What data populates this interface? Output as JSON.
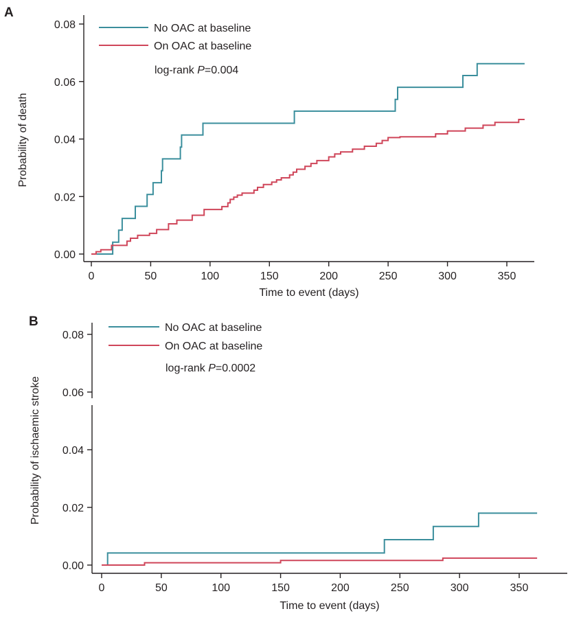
{
  "figure": {
    "panels": [
      "A",
      "B"
    ]
  },
  "chart_data": [
    {
      "type": "line",
      "panel_label": "A",
      "xlabel": "Time to event (days)",
      "ylabel": "Probability of death",
      "xlim": [
        0,
        370
      ],
      "ylim": [
        0,
        0.08
      ],
      "x_ticks": [
        0,
        50,
        100,
        150,
        200,
        250,
        300,
        350
      ],
      "y_ticks": [
        0.0,
        0.02,
        0.04,
        0.06,
        0.08
      ],
      "y_tick_labels": [
        "0.00",
        "0.02",
        "0.04",
        "0.06",
        "0.08"
      ],
      "grid": false,
      "legend_position": "top-left",
      "annotation": {
        "prefix": "log-rank ",
        "italic": "P",
        "suffix": "=0.004"
      },
      "series": [
        {
          "name": "No OAC at baseline",
          "color": "#3a8e9c",
          "step": true,
          "x": [
            0,
            5,
            18,
            23,
            26,
            37,
            47,
            52,
            59,
            60,
            75,
            76,
            94,
            171,
            256,
            258,
            263,
            313,
            325,
            365
          ],
          "y": [
            0,
            0,
            0.0041,
            0.0083,
            0.0124,
            0.0166,
            0.0207,
            0.0248,
            0.029,
            0.0331,
            0.0372,
            0.0414,
            0.0455,
            0.0497,
            0.0538,
            0.058,
            0.058,
            0.0621,
            0.0662,
            0.0662
          ]
        },
        {
          "name": "On OAC at baseline",
          "color": "#cf4559",
          "step": true,
          "x": [
            0,
            4,
            8,
            17,
            30,
            33,
            39,
            49,
            55,
            65,
            72,
            85,
            95,
            110,
            115,
            117,
            120,
            123,
            127,
            137,
            140,
            145,
            152,
            156,
            160,
            167,
            170,
            173,
            180,
            185,
            190,
            200,
            205,
            210,
            220,
            230,
            240,
            245,
            250,
            260,
            290,
            300,
            315,
            330,
            340,
            360,
            365
          ],
          "y": [
            0,
            0.0008,
            0.0015,
            0.003,
            0.0045,
            0.0055,
            0.0065,
            0.0072,
            0.0085,
            0.0105,
            0.0118,
            0.0135,
            0.0155,
            0.0165,
            0.0178,
            0.019,
            0.0198,
            0.0205,
            0.0212,
            0.0222,
            0.0232,
            0.0242,
            0.025,
            0.0258,
            0.0265,
            0.0275,
            0.0285,
            0.0295,
            0.0305,
            0.0315,
            0.0325,
            0.0338,
            0.0348,
            0.0355,
            0.0365,
            0.0375,
            0.0385,
            0.0395,
            0.0405,
            0.0408,
            0.0418,
            0.0428,
            0.0438,
            0.0448,
            0.0458,
            0.0468,
            0.0468
          ]
        }
      ]
    },
    {
      "type": "line",
      "panel_label": "B",
      "xlabel": "Time to event (days)",
      "ylabel": "Probability of ischaemic stroke",
      "xlim": [
        0,
        370
      ],
      "ylim": [
        0,
        0.08
      ],
      "x_ticks": [
        0,
        50,
        100,
        150,
        200,
        250,
        300,
        350
      ],
      "y_ticks": [
        0.0,
        0.02,
        0.04,
        0.06,
        0.08
      ],
      "y_tick_labels": [
        "0.00",
        "0.02",
        "0.04",
        "0.06",
        "0.08"
      ],
      "grid": false,
      "legend_position": "top-left",
      "annotation": {
        "prefix": "log-rank ",
        "italic": "P",
        "suffix": "=0.0002"
      },
      "series": [
        {
          "name": "No OAC at baseline",
          "color": "#3a8e9c",
          "step": true,
          "x": [
            0,
            5,
            237,
            278,
            316,
            365
          ],
          "y": [
            0,
            0.0042,
            0.0088,
            0.0134,
            0.018,
            0.018
          ]
        },
        {
          "name": "On OAC at baseline",
          "color": "#cf4559",
          "step": true,
          "x": [
            0,
            36,
            150,
            286,
            365
          ],
          "y": [
            0,
            0.0008,
            0.0016,
            0.0024,
            0.0024
          ]
        }
      ]
    }
  ]
}
